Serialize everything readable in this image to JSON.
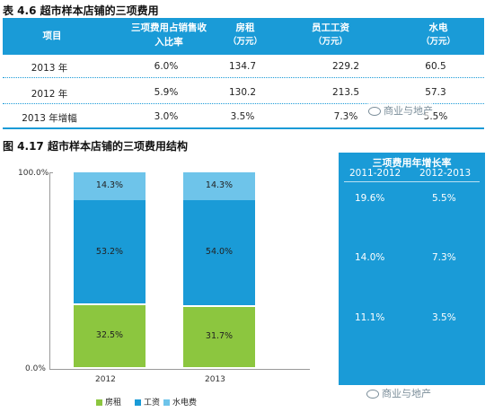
{
  "table": {
    "caption": "表 4.6 超市样本店铺的三项费用",
    "headers": [
      "项目",
      "三项费用占销售收",
      "入比率",
      "房租",
      "（万元）",
      "员工工资",
      "（万元）",
      "水电",
      "（万元）"
    ],
    "rows": [
      [
        "2013 年",
        "6.0%",
        "134.7",
        "229.2",
        "60.5"
      ],
      [
        "2012 年",
        "5.9%",
        "130.2",
        "213.5",
        "57.3"
      ],
      [
        "2013 年增幅",
        "3.0%",
        "3.5%",
        "7.3%",
        "5.5%"
      ]
    ]
  },
  "chart_caption": "图 4.17 超市样本店铺的三项费用结构",
  "chart_data": {
    "type": "bar",
    "stacked": true,
    "categories": [
      "2012",
      "2013"
    ],
    "series": [
      {
        "name": "房租",
        "values": [
          32.5,
          31.7
        ],
        "color": "#8cc63f"
      },
      {
        "name": "工资",
        "values": [
          53.2,
          54.0
        ],
        "color": "#1a9bd7"
      },
      {
        "name": "水电费",
        "values": [
          14.3,
          14.3
        ],
        "color": "#6ec4ea"
      }
    ],
    "y_tick_labels": [
      "100.0%",
      "0.0%"
    ],
    "ylim": [
      0,
      100
    ],
    "legend_position": "bottom"
  },
  "growth_panel": {
    "title": "三项费用年增长率",
    "columns": [
      "2011-2012",
      "2012-2013"
    ],
    "rows": [
      [
        "19.6%",
        "5.5%"
      ],
      [
        "14.0%",
        "7.3%"
      ],
      [
        "11.1%",
        "3.5%"
      ]
    ]
  },
  "watermark": "商业与地产",
  "colors": {
    "accent": "#1a9bd7",
    "rent": "#8cc63f",
    "wage": "#1a9bd7",
    "utility": "#6ec4ea"
  }
}
